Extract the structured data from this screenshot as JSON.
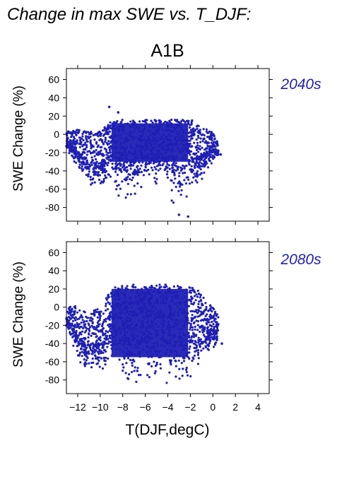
{
  "figure": {
    "title": "Change in max SWE vs. T_DJF:",
    "scenario": "A1B"
  },
  "chart_data": [
    {
      "type": "scatter",
      "panel_label": "2040s",
      "xlabel": "T(DJF,degC)",
      "ylabel": "SWE Change (%)",
      "xlim": [
        -13,
        5
      ],
      "ylim": [
        -95,
        72
      ],
      "xticks": [
        -12,
        -10,
        -8,
        -6,
        -4,
        -2,
        0,
        2,
        4
      ],
      "yticks": [
        60,
        40,
        20,
        0,
        -20,
        -40,
        -60,
        -80
      ],
      "show_x_tick_labels": false,
      "point_color": "#1f1fb4",
      "envelope": {
        "x": [
          -13.0,
          -12.0,
          -11.0,
          -10.0,
          -9.5,
          -9.0,
          -8.5,
          -8.0,
          -7.5,
          -7.0,
          -6.5,
          -6.0,
          -5.5,
          -5.0,
          -4.5,
          -4.0,
          -3.5,
          -3.0,
          -2.5,
          -2.0,
          -1.5,
          -1.0,
          -0.5,
          0.0,
          0.5
        ],
        "upper": [
          3,
          5,
          4,
          4,
          10,
          15,
          16,
          16,
          16,
          16,
          16,
          16,
          16,
          16,
          16,
          16,
          16,
          16,
          16,
          16,
          14,
          10,
          5,
          2,
          -10
        ],
        "lower": [
          -15,
          -40,
          -55,
          -60,
          -55,
          -50,
          -65,
          -75,
          -72,
          -68,
          -60,
          -55,
          -60,
          -58,
          -55,
          -65,
          -82,
          -85,
          -75,
          -65,
          -55,
          -50,
          -40,
          -30,
          -25
        ]
      },
      "outliers": [
        {
          "x": -9.2,
          "y": 30
        },
        {
          "x": -8.4,
          "y": 24
        },
        {
          "x": -3.0,
          "y": -88
        },
        {
          "x": -2.2,
          "y": -90
        },
        {
          "x": -12.6,
          "y": 2
        },
        {
          "x": -13.0,
          "y": -13
        },
        {
          "x": 0.7,
          "y": -22
        }
      ]
    },
    {
      "type": "scatter",
      "panel_label": "2080s",
      "xlabel": "T(DJF,degC)",
      "ylabel": "SWE Change (%)",
      "xlim": [
        -13,
        5
      ],
      "ylim": [
        -95,
        72
      ],
      "xticks": [
        -12,
        -10,
        -8,
        -6,
        -4,
        -2,
        0,
        2,
        4
      ],
      "yticks": [
        60,
        40,
        20,
        0,
        -20,
        -40,
        -60,
        -80
      ],
      "show_x_tick_labels": true,
      "point_color": "#1f1fb4",
      "envelope": {
        "x": [
          -13.0,
          -12.0,
          -11.0,
          -10.0,
          -9.5,
          -9.0,
          -8.5,
          -8.0,
          -7.5,
          -7.0,
          -6.5,
          -6.0,
          -5.5,
          -5.0,
          -4.5,
          -4.0,
          -3.5,
          -3.0,
          -2.5,
          -2.0,
          -1.5,
          -1.0,
          -0.5,
          0.0,
          0.5
        ],
        "upper": [
          0,
          2,
          -5,
          0,
          10,
          18,
          24,
          25,
          25,
          25,
          25,
          25,
          25,
          25,
          25,
          25,
          25,
          24,
          24,
          23,
          20,
          15,
          5,
          0,
          -10
        ],
        "lower": [
          -20,
          -60,
          -70,
          -72,
          -70,
          -68,
          -72,
          -80,
          -82,
          -84,
          -85,
          -83,
          -78,
          -75,
          -80,
          -88,
          -90,
          -86,
          -82,
          -78,
          -70,
          -60,
          -50,
          -45,
          -40
        ]
      },
      "outliers": [
        {
          "x": -12.5,
          "y": -2
        },
        {
          "x": -13.0,
          "y": -20
        },
        {
          "x": 0.8,
          "y": -40
        },
        {
          "x": 0.4,
          "y": -25
        }
      ]
    }
  ]
}
